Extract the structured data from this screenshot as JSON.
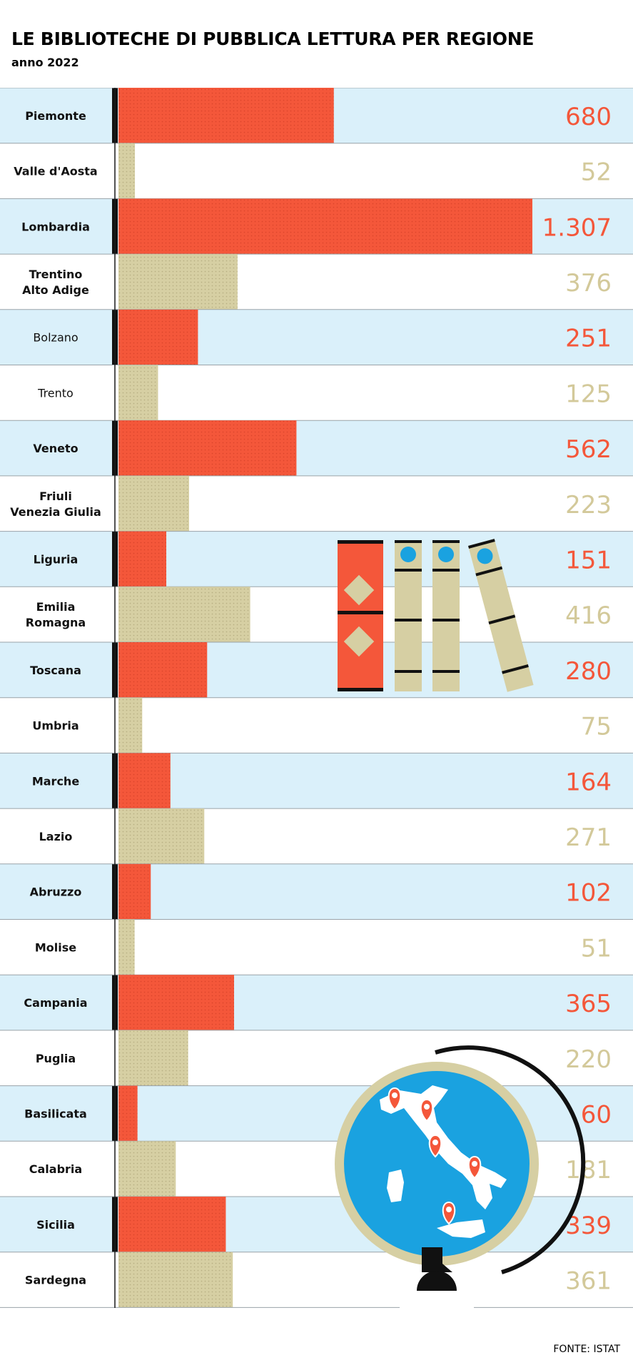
{
  "title": "LE BIBLIOTECHE DI PUBBLICA LETTURA PER REGIONE",
  "subtitle": "anno 2022",
  "source": "FONTE: ISTAT",
  "colors": {
    "accent": "#F4573A",
    "secondary": "#D6CFA3",
    "row_highlight": "#DAF0FA",
    "number_secondary": "#D3C99A",
    "globe_blue": "#1AA2E0"
  },
  "icons": [
    "books-illustration",
    "globe-italy-illustration"
  ],
  "chart_data": {
    "type": "bar",
    "orientation": "horizontal",
    "title": "LE BIBLIOTECHE DI PUBBLICA LETTURA PER REGIONE",
    "subtitle": "anno 2022",
    "categories": [
      "Piemonte",
      "Valle d'Aosta",
      "Lombardia",
      "Trentino Alto Adige",
      "Bolzano",
      "Trento",
      "Veneto",
      "Friuli Venezia Giulia",
      "Liguria",
      "Emilia Romagna",
      "Toscana",
      "Umbria",
      "Marche",
      "Lazio",
      "Abruzzo",
      "Molise",
      "Campania",
      "Puglia",
      "Basilicata",
      "Calabria",
      "Sicilia",
      "Sardegna"
    ],
    "category_lines": [
      [
        "Piemonte"
      ],
      [
        "Valle d'Aosta"
      ],
      [
        "Lombardia"
      ],
      [
        "Trentino",
        "Alto Adige"
      ],
      [
        "Bolzano"
      ],
      [
        "Trento"
      ],
      [
        "Veneto"
      ],
      [
        "Friuli",
        "Venezia Giulia"
      ],
      [
        "Liguria"
      ],
      [
        "Emilia",
        "Romagna"
      ],
      [
        "Toscana"
      ],
      [
        "Umbria"
      ],
      [
        "Marche"
      ],
      [
        "Lazio"
      ],
      [
        "Abruzzo"
      ],
      [
        "Molise"
      ],
      [
        "Campania"
      ],
      [
        "Puglia"
      ],
      [
        "Basilicata"
      ],
      [
        "Calabria"
      ],
      [
        "Sicilia"
      ],
      [
        "Sardegna"
      ]
    ],
    "values": [
      680,
      52,
      1307,
      376,
      251,
      125,
      562,
      223,
      151,
      416,
      280,
      75,
      164,
      271,
      102,
      51,
      365,
      220,
      60,
      181,
      339,
      361
    ],
    "value_labels": [
      "680",
      "52",
      "1.307",
      "376",
      "251",
      "125",
      "562",
      "223",
      "151",
      "416",
      "280",
      "75",
      "164",
      "271",
      "102",
      "51",
      "365",
      "220",
      "60",
      "181",
      "339",
      "361"
    ],
    "highlighted": [
      true,
      false,
      true,
      false,
      true,
      false,
      true,
      false,
      true,
      false,
      true,
      false,
      true,
      false,
      true,
      false,
      true,
      false,
      true,
      false,
      true,
      false
    ],
    "bold_label": [
      true,
      true,
      true,
      true,
      false,
      false,
      true,
      true,
      true,
      true,
      true,
      true,
      true,
      true,
      true,
      true,
      true,
      true,
      true,
      true,
      true,
      true
    ],
    "xlim": [
      0,
      1307
    ],
    "grid": false
  }
}
